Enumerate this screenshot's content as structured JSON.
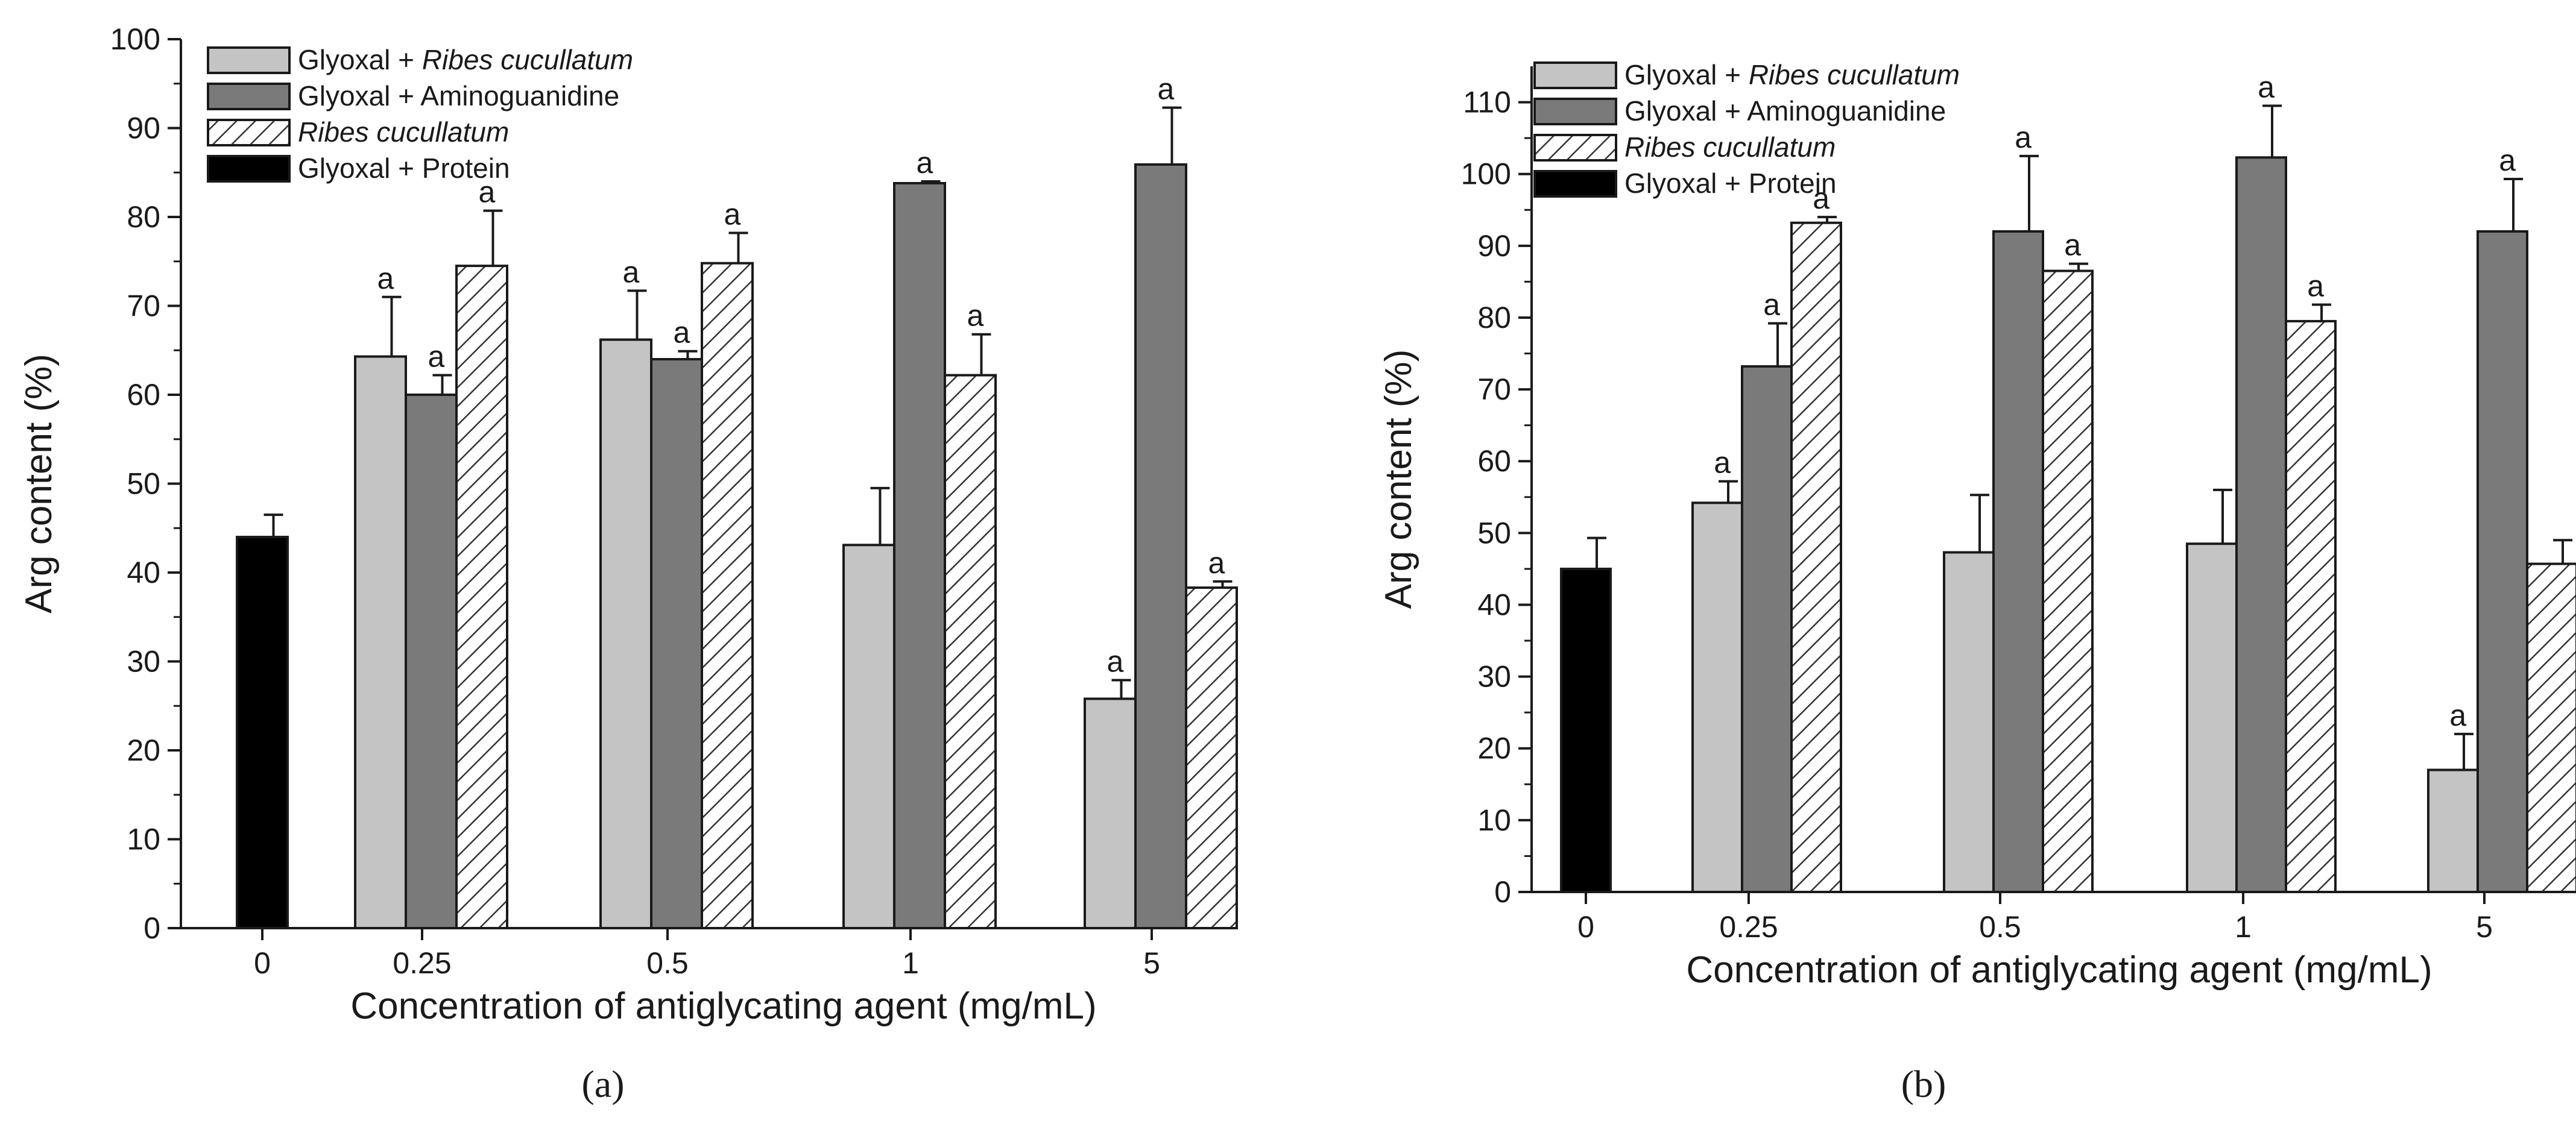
{
  "colors": {
    "light_gray": "#c4c4c4",
    "dark_gray": "#7a7a7a",
    "black": "#000000",
    "hatch": "#333333"
  },
  "legend": [
    {
      "prefix": "Glyoxal + ",
      "italic": "Ribes cucullatum",
      "style": "light"
    },
    {
      "prefix": "Glyoxal + Aminoguanidine",
      "italic": "",
      "style": "dark"
    },
    {
      "prefix": "",
      "italic": "Ribes cucullatum",
      "style": "hatch"
    },
    {
      "prefix": "Glyoxal + Protein",
      "italic": "",
      "style": "black"
    }
  ],
  "chart_data": [
    {
      "type": "bar",
      "panel_label": "(a)",
      "xlabel": "Concentration of antiglycating agent (mg/mL)",
      "ylabel": "Arg content (%)",
      "ylim": [
        0,
        100
      ],
      "yticks": [
        0,
        10,
        20,
        30,
        40,
        50,
        60,
        70,
        80,
        90,
        100
      ],
      "categories": [
        "0",
        "0.25",
        "0.5",
        "1",
        "5"
      ],
      "series": [
        {
          "name": "Glyoxal + Ribes cucullatum",
          "style": "light",
          "values": [
            null,
            64.3,
            66.2,
            43.1,
            25.8
          ],
          "errors": [
            null,
            6.7,
            5.5,
            6.4,
            2.1
          ],
          "labels": [
            "",
            "a",
            "a",
            "",
            "a"
          ]
        },
        {
          "name": "Glyoxal + Aminoguanidine",
          "style": "dark",
          "values": [
            null,
            60.0,
            64.0,
            83.8,
            85.9
          ],
          "errors": [
            null,
            2.2,
            0.9,
            0.2,
            6.4
          ],
          "labels": [
            "",
            "a",
            "a",
            "a",
            "a"
          ]
        },
        {
          "name": "Ribes cucullatum",
          "style": "hatch",
          "values": [
            null,
            74.5,
            74.8,
            62.2,
            38.3
          ],
          "errors": [
            null,
            6.2,
            3.4,
            4.6,
            0.7
          ],
          "labels": [
            "",
            "a",
            "a",
            "a",
            "a"
          ]
        },
        {
          "name": "Glyoxal + Protein",
          "style": "black",
          "values": [
            44.0,
            null,
            null,
            null,
            null
          ],
          "errors": [
            2.5,
            null,
            null,
            null,
            null
          ],
          "labels": [
            "",
            "",
            "",
            "",
            ""
          ]
        }
      ]
    },
    {
      "type": "bar",
      "panel_label": "(b)",
      "xlabel": "Concentration of antiglycating agent (mg/mL)",
      "ylabel": "Arg content (%)",
      "ylim": [
        0,
        115
      ],
      "yticks": [
        0,
        10,
        20,
        30,
        40,
        50,
        60,
        70,
        80,
        90,
        100,
        110
      ],
      "categories": [
        "0",
        "0.25",
        "0.5",
        "1",
        "5"
      ],
      "series": [
        {
          "name": "Glyoxal + Ribes cucullatum",
          "style": "light",
          "values": [
            null,
            54.2,
            47.3,
            48.5,
            17.0
          ],
          "errors": [
            null,
            3.0,
            8.0,
            7.5,
            5.0
          ],
          "labels": [
            "",
            "a",
            "",
            "",
            "a"
          ]
        },
        {
          "name": "Glyoxal + Aminoguanidine",
          "style": "dark",
          "values": [
            null,
            73.2,
            92.0,
            102.3,
            92.0
          ],
          "errors": [
            null,
            6.0,
            10.5,
            7.2,
            7.3
          ],
          "labels": [
            "",
            "a",
            "a",
            "a",
            "a"
          ]
        },
        {
          "name": "Ribes cucullatum",
          "style": "hatch",
          "values": [
            null,
            93.2,
            86.5,
            79.5,
            45.7
          ],
          "errors": [
            null,
            0.8,
            1.0,
            2.3,
            3.3
          ],
          "labels": [
            "",
            "a",
            "a",
            "a",
            ""
          ]
        },
        {
          "name": "Glyoxal + Protein",
          "style": "black",
          "values": [
            45.0,
            null,
            null,
            null,
            null
          ],
          "errors": [
            4.3,
            null,
            null,
            null,
            null
          ],
          "labels": [
            "",
            "",
            "",
            "",
            ""
          ]
        }
      ]
    }
  ]
}
